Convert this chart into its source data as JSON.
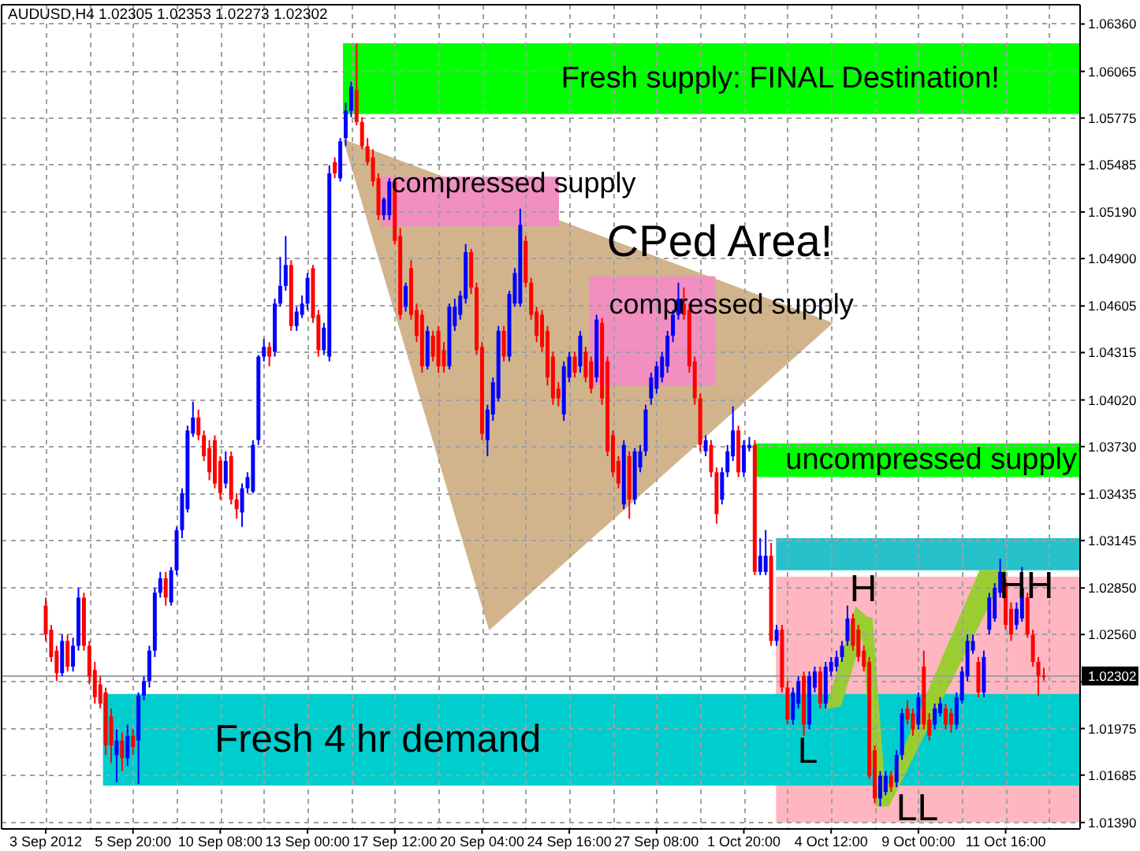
{
  "chart_data": {
    "type": "candlestick",
    "title": "AUDUSD,H4 1.02305 1.02353 1.02273 1.02302",
    "categories": [
      "3 Sep 2012",
      null,
      null,
      null,
      null,
      null,
      null,
      null,
      null,
      null,
      null,
      null,
      null,
      null,
      null,
      null,
      "5 Sep 20:00",
      null,
      null,
      null,
      null,
      null,
      null,
      null,
      null,
      null,
      null,
      null,
      null,
      null,
      null,
      null,
      "10 Sep 08:00",
      null,
      null,
      null,
      null,
      null,
      null,
      null,
      null,
      null,
      null,
      null,
      null,
      null,
      null,
      null,
      "13 Sep 00:00",
      null,
      null,
      null,
      null,
      null,
      null,
      null,
      null,
      null,
      null,
      null,
      null,
      null,
      null,
      null,
      "17 Sep 12:00",
      null,
      null,
      null,
      null,
      null,
      null,
      null,
      null,
      null,
      null,
      null,
      null,
      null,
      null,
      null,
      "20 Sep 04:00",
      null,
      null,
      null,
      null,
      null,
      null,
      null,
      null,
      null,
      null,
      null,
      null,
      null,
      null,
      null,
      "24 Sep 16:00",
      null,
      null,
      null,
      null,
      null,
      null,
      null,
      null,
      null,
      null,
      null,
      null,
      null,
      null,
      null,
      "27 Sep 08:00",
      null,
      null,
      null,
      null,
      null,
      null,
      null,
      null,
      null,
      null,
      null,
      null,
      null,
      null,
      null,
      "1 Oct 20:00",
      null,
      null,
      null,
      null,
      null,
      null,
      null,
      null,
      null,
      null,
      null,
      null,
      null,
      null,
      null,
      "4 Oct 12:00",
      null,
      null,
      null,
      null,
      null,
      null,
      null,
      null,
      null,
      null,
      null,
      null,
      null,
      null,
      null,
      "9 Oct 00:00",
      null,
      null,
      null,
      null,
      null,
      null,
      null,
      null,
      null,
      null,
      null,
      null,
      null,
      null,
      null,
      "11 Oct 16:00",
      null,
      null,
      null,
      null,
      null,
      null,
      null
    ],
    "ohlc": [
      [
        1.0274,
        1.0279,
        1.0252,
        1.0256
      ],
      [
        1.0259,
        1.0262,
        1.0239,
        1.0242
      ],
      [
        1.0246,
        1.0249,
        1.0227,
        1.0232
      ],
      [
        1.0232,
        1.0256,
        1.023,
        1.0252
      ],
      [
        1.0252,
        1.0256,
        1.0233,
        1.0236
      ],
      [
        1.0236,
        1.0254,
        1.0233,
        1.0249
      ],
      [
        1.0249,
        1.0285,
        1.0246,
        1.0279
      ],
      [
        1.0279,
        1.0282,
        1.0246,
        1.0249
      ],
      [
        1.0249,
        1.0252,
        1.0225,
        1.023
      ],
      [
        1.0234,
        1.0239,
        1.0213,
        1.0217
      ],
      [
        1.0225,
        1.023,
        1.021,
        1.0213
      ],
      [
        1.022,
        1.0223,
        1.0181,
        1.0187
      ],
      [
        1.0205,
        1.021,
        1.0176,
        1.0187
      ],
      [
        1.0181,
        1.0197,
        1.0164,
        1.019
      ],
      [
        1.019,
        1.0195,
        1.0171,
        1.0179
      ],
      [
        1.0179,
        1.02,
        1.0174,
        1.0193
      ],
      [
        1.0193,
        1.0197,
        1.0181,
        1.0186
      ],
      [
        1.019,
        1.022,
        1.0163,
        1.0218
      ],
      [
        1.0218,
        1.023,
        1.0215,
        1.0227
      ],
      [
        1.0227,
        1.0249,
        1.0223,
        1.0246
      ],
      [
        1.0246,
        1.0285,
        1.0242,
        1.0282
      ],
      [
        1.0282,
        1.0295,
        1.0279,
        1.0291
      ],
      [
        1.0291,
        1.0295,
        1.0274,
        1.0279
      ],
      [
        1.0276,
        1.0298,
        1.0274,
        1.0296
      ],
      [
        1.0296,
        1.0323,
        1.0293,
        1.0321
      ],
      [
        1.0321,
        1.0347,
        1.0316,
        1.0344
      ],
      [
        1.0334,
        1.0386,
        1.0332,
        1.0383
      ],
      [
        1.0381,
        1.0401,
        1.0379,
        1.0391
      ],
      [
        1.0391,
        1.0396,
        1.0377,
        1.038
      ],
      [
        1.038,
        1.0383,
        1.0364,
        1.0367
      ],
      [
        1.0372,
        1.0377,
        1.0352,
        1.0357
      ],
      [
        1.0377,
        1.038,
        1.0347,
        1.035
      ],
      [
        1.0364,
        1.0367,
        1.034,
        1.0344
      ],
      [
        1.035,
        1.037,
        1.0347,
        1.0364
      ],
      [
        1.0367,
        1.037,
        1.0337,
        1.034
      ],
      [
        1.034,
        1.0344,
        1.0328,
        1.0334
      ],
      [
        1.0332,
        1.035,
        1.0323,
        1.0347
      ],
      [
        1.0347,
        1.0357,
        1.0344,
        1.0354
      ],
      [
        1.0345,
        1.0377,
        1.0344,
        1.0374
      ],
      [
        1.0377,
        1.043,
        1.0374,
        1.0429
      ],
      [
        1.0429,
        1.044,
        1.0426,
        1.0435
      ],
      [
        1.0435,
        1.0438,
        1.0423,
        1.0429
      ],
      [
        1.0432,
        1.0465,
        1.0429,
        1.0462
      ],
      [
        1.0462,
        1.0491,
        1.046,
        1.0473
      ],
      [
        1.0473,
        1.0504,
        1.047,
        1.0486
      ],
      [
        1.0486,
        1.0489,
        1.0445,
        1.0448
      ],
      [
        1.0448,
        1.046,
        1.0445,
        1.0457
      ],
      [
        1.0455,
        1.0467,
        1.0453,
        1.0462
      ],
      [
        1.0462,
        1.0481,
        1.0458,
        1.0478
      ],
      [
        1.0484,
        1.0486,
        1.045,
        1.0453
      ],
      [
        1.0455,
        1.0458,
        1.0429,
        1.0433
      ],
      [
        1.0433,
        1.045,
        1.043,
        1.0447
      ],
      [
        1.0429,
        1.0548,
        1.0426,
        1.0543
      ],
      [
        1.055,
        1.0553,
        1.054,
        1.0543
      ],
      [
        1.054,
        1.0565,
        1.0538,
        1.0563
      ],
      [
        1.0565,
        1.0587,
        1.056,
        1.0582
      ],
      [
        1.0582,
        1.06,
        1.0578,
        1.0597
      ],
      [
        1.0595,
        1.0624,
        1.0573,
        1.0575
      ],
      [
        1.0575,
        1.0578,
        1.0558,
        1.056
      ],
      [
        1.056,
        1.0565,
        1.0548,
        1.055
      ],
      [
        1.0553,
        1.0558,
        1.0535,
        1.0538
      ],
      [
        1.054,
        1.0543,
        1.0514,
        1.0517
      ],
      [
        1.0517,
        1.0528,
        1.0514,
        1.0527
      ],
      [
        1.0517,
        1.054,
        1.0514,
        1.0538
      ],
      [
        1.0538,
        1.054,
        1.0499,
        1.0501
      ],
      [
        1.0504,
        1.0509,
        1.0452,
        1.0455
      ],
      [
        1.046,
        1.0475,
        1.0457,
        1.0473
      ],
      [
        1.0484,
        1.0489,
        1.0452,
        1.0455
      ],
      [
        1.0458,
        1.0462,
        1.0438,
        1.0442
      ],
      [
        1.0455,
        1.0458,
        1.0419,
        1.0423
      ],
      [
        1.0423,
        1.0448,
        1.0421,
        1.0445
      ],
      [
        1.0442,
        1.0445,
        1.0426,
        1.0429
      ],
      [
        1.0445,
        1.0448,
        1.0419,
        1.0423
      ],
      [
        1.0433,
        1.0438,
        1.0419,
        1.0423
      ],
      [
        1.0423,
        1.0462,
        1.0421,
        1.046
      ],
      [
        1.0448,
        1.0465,
        1.0445,
        1.046
      ],
      [
        1.0455,
        1.047,
        1.0452,
        1.0467
      ],
      [
        1.0465,
        1.0499,
        1.0462,
        1.0494
      ],
      [
        1.0494,
        1.0496,
        1.0468,
        1.0472
      ],
      [
        1.0472,
        1.0475,
        1.043,
        1.0433
      ],
      [
        1.0435,
        1.0438,
        1.0377,
        1.0381
      ],
      [
        1.0377,
        1.0399,
        1.0367,
        1.0396
      ],
      [
        1.0393,
        1.0416,
        1.0389,
        1.0413
      ],
      [
        1.0403,
        1.0448,
        1.0401,
        1.0445
      ],
      [
        1.0445,
        1.0448,
        1.0426,
        1.0429
      ],
      [
        1.0429,
        1.047,
        1.0426,
        1.0468
      ],
      [
        1.0462,
        1.0484,
        1.046,
        1.0481
      ],
      [
        1.0462,
        1.0521,
        1.046,
        1.0511
      ],
      [
        1.0501,
        1.0504,
        1.0472,
        1.0475
      ],
      [
        1.0475,
        1.0478,
        1.0452,
        1.0455
      ],
      [
        1.0457,
        1.046,
        1.0438,
        1.0442
      ],
      [
        1.0455,
        1.0458,
        1.0432,
        1.0435
      ],
      [
        1.0445,
        1.0448,
        1.0411,
        1.0416
      ],
      [
        1.0429,
        1.0432,
        1.0399,
        1.0403
      ],
      [
        1.0409,
        1.0413,
        1.0398,
        1.0403
      ],
      [
        1.0393,
        1.0426,
        1.0389,
        1.0423
      ],
      [
        1.0416,
        1.0432,
        1.0413,
        1.0429
      ],
      [
        1.0429,
        1.0432,
        1.0416,
        1.0419
      ],
      [
        1.0423,
        1.0445,
        1.0419,
        1.0442
      ],
      [
        1.0432,
        1.0435,
        1.0413,
        1.0416
      ],
      [
        1.0426,
        1.0429,
        1.0406,
        1.0409
      ],
      [
        1.0416,
        1.0455,
        1.0413,
        1.0452
      ],
      [
        1.045,
        1.0453,
        1.0399,
        1.0403
      ],
      [
        1.0426,
        1.0429,
        1.0367,
        1.037
      ],
      [
        1.038,
        1.0383,
        1.0354,
        1.0357
      ],
      [
        1.0364,
        1.0367,
        1.0347,
        1.035
      ],
      [
        1.0337,
        1.0377,
        1.0334,
        1.0374
      ],
      [
        1.0367,
        1.037,
        1.0328,
        1.034
      ],
      [
        1.034,
        1.0372,
        1.0337,
        1.037
      ],
      [
        1.036,
        1.0374,
        1.0357,
        1.037
      ],
      [
        1.037,
        1.0399,
        1.0367,
        1.0396
      ],
      [
        1.0403,
        1.0419,
        1.0399,
        1.0416
      ],
      [
        1.0409,
        1.0426,
        1.0406,
        1.0423
      ],
      [
        1.0416,
        1.0432,
        1.0413,
        1.0429
      ],
      [
        1.0423,
        1.0445,
        1.0419,
        1.0442
      ],
      [
        1.0442,
        1.0458,
        1.0438,
        1.0455
      ],
      [
        1.0455,
        1.0475,
        1.0452,
        1.0465
      ],
      [
        1.0462,
        1.0472,
        1.0452,
        1.0455
      ],
      [
        1.0458,
        1.0462,
        1.0419,
        1.0423
      ],
      [
        1.0426,
        1.0429,
        1.0399,
        1.0403
      ],
      [
        1.0403,
        1.0406,
        1.037,
        1.0374
      ],
      [
        1.037,
        1.038,
        1.0367,
        1.0377
      ],
      [
        1.0374,
        1.0377,
        1.0354,
        1.0357
      ],
      [
        1.0357,
        1.036,
        1.0325,
        1.0331
      ],
      [
        1.034,
        1.036,
        1.0337,
        1.0357
      ],
      [
        1.0357,
        1.0374,
        1.0354,
        1.037
      ],
      [
        1.0367,
        1.0398,
        1.0364,
        1.0383
      ],
      [
        1.0383,
        1.0386,
        1.0354,
        1.0357
      ],
      [
        1.0357,
        1.0377,
        1.0354,
        1.0374
      ],
      [
        1.0372,
        1.0379,
        1.037,
        1.0374
      ],
      [
        1.0374,
        1.0377,
        1.0293,
        1.0295
      ],
      [
        1.0295,
        1.0316,
        1.0293,
        1.0305
      ],
      [
        1.0295,
        1.0321,
        1.0293,
        1.0305
      ],
      [
        1.0305,
        1.0313,
        1.0249,
        1.0252
      ],
      [
        1.0252,
        1.0262,
        1.0249,
        1.0259
      ],
      [
        1.0259,
        1.0262,
        1.022,
        1.0223
      ],
      [
        1.0223,
        1.0227,
        1.02,
        1.0203
      ],
      [
        1.0203,
        1.0223,
        1.02,
        1.022
      ],
      [
        1.0213,
        1.023,
        1.021,
        1.0227
      ],
      [
        1.023,
        1.0233,
        1.0193,
        1.02
      ],
      [
        1.02,
        1.0233,
        1.0197,
        1.023
      ],
      [
        1.0223,
        1.0236,
        1.022,
        1.0233
      ],
      [
        1.0233,
        1.0236,
        1.021,
        1.0213
      ],
      [
        1.0213,
        1.0239,
        1.021,
        1.0236
      ],
      [
        1.0233,
        1.0242,
        1.023,
        1.0239
      ],
      [
        1.0236,
        1.0246,
        1.0233,
        1.0242
      ],
      [
        1.0242,
        1.0252,
        1.0239,
        1.0249
      ],
      [
        1.0252,
        1.0274,
        1.0249,
        1.0266
      ],
      [
        1.0266,
        1.0269,
        1.0246,
        1.0249
      ],
      [
        1.0259,
        1.0262,
        1.0239,
        1.0242
      ],
      [
        1.0246,
        1.0249,
        1.0233,
        1.0236
      ],
      [
        1.0239,
        1.0242,
        1.0166,
        1.0168
      ],
      [
        1.0184,
        1.0187,
        1.0151,
        1.0154
      ],
      [
        1.0154,
        1.0171,
        1.0149,
        1.0168
      ],
      [
        1.0158,
        1.0171,
        1.0156,
        1.0168
      ],
      [
        1.0168,
        1.0171,
        1.0158,
        1.0161
      ],
      [
        1.0164,
        1.0184,
        1.0161,
        1.0181
      ],
      [
        1.0181,
        1.021,
        1.0178,
        1.0207
      ],
      [
        1.021,
        1.0215,
        1.02,
        1.0203
      ],
      [
        1.0207,
        1.021,
        1.0193,
        1.0197
      ],
      [
        1.02,
        1.022,
        1.0197,
        1.0217
      ],
      [
        1.0236,
        1.0246,
        1.0197,
        1.02
      ],
      [
        1.0203,
        1.0207,
        1.019,
        1.0193
      ],
      [
        1.02,
        1.0213,
        1.0197,
        1.021
      ],
      [
        1.0207,
        1.0217,
        1.0205,
        1.0213
      ],
      [
        1.021,
        1.0213,
        1.0197,
        1.02
      ],
      [
        1.0207,
        1.021,
        1.0195,
        1.02
      ],
      [
        1.02,
        1.022,
        1.0197,
        1.0217
      ],
      [
        1.0215,
        1.0236,
        1.0213,
        1.0233
      ],
      [
        1.023,
        1.0256,
        1.0227,
        1.0252
      ],
      [
        1.0246,
        1.0256,
        1.0244,
        1.0252
      ],
      [
        1.0239,
        1.0242,
        1.0217,
        1.022
      ],
      [
        1.022,
        1.0246,
        1.0217,
        1.0242
      ],
      [
        1.0259,
        1.0282,
        1.0256,
        1.0279
      ],
      [
        1.0266,
        1.0288,
        1.0264,
        1.0285
      ],
      [
        1.0282,
        1.0303,
        1.0279,
        1.0295
      ],
      [
        1.0288,
        1.0291,
        1.0259,
        1.0262
      ],
      [
        1.0272,
        1.0276,
        1.0252,
        1.0256
      ],
      [
        1.0262,
        1.0276,
        1.0259,
        1.0272
      ],
      [
        1.0266,
        1.0298,
        1.0264,
        1.0285
      ],
      [
        1.0279,
        1.0282,
        1.0254,
        1.0256
      ],
      [
        1.0256,
        1.0259,
        1.0236,
        1.0239
      ],
      [
        1.0239,
        1.0242,
        1.0218,
        1.023
      ],
      [
        1.02305,
        1.02353,
        1.02273,
        1.02302
      ]
    ],
    "colors": [
      "#ff0000",
      "#ff0000",
      "#ff0000",
      "#0000ff",
      "#ff0000",
      "#0000ff",
      "#0000ff",
      "#ff0000",
      "#ff0000",
      "#ff0000",
      "#ff0000",
      "#ff0000",
      "#ff0000",
      "#0000ff",
      "#ff0000",
      "#0000ff",
      "#ff0000",
      "#0000ff",
      "#0000ff",
      "#0000ff",
      "#0000ff",
      "#0000ff",
      "#ff0000",
      "#0000ff",
      "#0000ff",
      "#0000ff",
      "#0000ff",
      "#0000ff",
      "#ff0000",
      "#ff0000",
      "#ff0000",
      "#ff0000",
      "#ff0000",
      "#0000ff",
      "#ff0000",
      "#ff0000",
      "#0000ff",
      "#0000ff",
      "#0000ff",
      "#0000ff",
      "#0000ff",
      "#ff0000",
      "#0000ff",
      "#0000ff",
      "#0000ff",
      "#ff0000",
      "#0000ff",
      "#0000ff",
      "#0000ff",
      "#ff0000",
      "#ff0000",
      "#0000ff",
      "#0000ff",
      "#ff0000",
      "#0000ff",
      "#0000ff",
      "#0000ff",
      "#ff0000",
      "#ff0000",
      "#ff0000",
      "#ff0000",
      "#ff0000",
      "#0000ff",
      "#0000ff",
      "#ff0000",
      "#ff0000",
      "#0000ff",
      "#ff0000",
      "#ff0000",
      "#ff0000",
      "#0000ff",
      "#ff0000",
      "#ff0000",
      "#ff0000",
      "#0000ff",
      "#0000ff",
      "#0000ff",
      "#0000ff",
      "#ff0000",
      "#ff0000",
      "#ff0000",
      "#0000ff",
      "#0000ff",
      "#0000ff",
      "#ff0000",
      "#0000ff",
      "#0000ff",
      "#0000ff",
      "#ff0000",
      "#ff0000",
      "#ff0000",
      "#ff0000",
      "#ff0000",
      "#ff0000",
      "#ff0000",
      "#0000ff",
      "#0000ff",
      "#ff0000",
      "#0000ff",
      "#ff0000",
      "#ff0000",
      "#0000ff",
      "#ff0000",
      "#ff0000",
      "#ff0000",
      "#ff0000",
      "#0000ff",
      "#ff0000",
      "#0000ff",
      "#0000ff",
      "#0000ff",
      "#0000ff",
      "#0000ff",
      "#0000ff",
      "#0000ff",
      "#0000ff",
      "#0000ff",
      "#ff0000",
      "#ff0000",
      "#ff0000",
      "#ff0000",
      "#0000ff",
      "#ff0000",
      "#ff0000",
      "#0000ff",
      "#0000ff",
      "#0000ff",
      "#ff0000",
      "#0000ff",
      "#0000ff",
      "#ff0000",
      "#0000ff",
      "#0000ff",
      "#ff0000",
      "#0000ff",
      "#ff0000",
      "#ff0000",
      "#0000ff",
      "#0000ff",
      "#ff0000",
      "#0000ff",
      "#0000ff",
      "#ff0000",
      "#0000ff",
      "#0000ff",
      "#0000ff",
      "#0000ff",
      "#0000ff",
      "#ff0000",
      "#ff0000",
      "#ff0000",
      "#ff0000",
      "#ff0000",
      "#0000ff",
      "#0000ff",
      "#ff0000",
      "#0000ff",
      "#0000ff",
      "#ff0000",
      "#ff0000",
      "#0000ff",
      "#ff0000",
      "#ff0000",
      "#0000ff",
      "#0000ff",
      "#ff0000",
      "#ff0000",
      "#0000ff",
      "#0000ff",
      "#0000ff",
      "#0000ff",
      "#ff0000",
      "#0000ff",
      "#0000ff",
      "#0000ff",
      "#0000ff",
      "#ff0000",
      "#ff0000",
      "#0000ff",
      "#0000ff",
      "#ff0000",
      "#ff0000",
      "#ff0000",
      "#ff0000"
    ],
    "ylim": [
      1.0135,
      1.0648
    ],
    "yticks": [
      {
        "value": 1.0636,
        "label": "1.06360"
      },
      1.06065,
      1.05775,
      1.05485,
      {
        "value": 1.0519,
        "label": "1.05190"
      },
      {
        "value": 1.049,
        "label": "1.04900"
      },
      1.04605,
      1.04315,
      {
        "value": 1.0402,
        "label": "1.04020"
      },
      {
        "value": 1.0373,
        "label": "1.03730"
      },
      1.03435,
      1.03145,
      {
        "value": 1.0285,
        "label": "1.02850"
      },
      {
        "value": 1.0256,
        "label": "1.02560"
      },
      {
        "value": 1.02265,
        "label": null
      },
      1.01975,
      1.01685,
      {
        "value": 1.0139,
        "label": "1.01390"
      }
    ],
    "grid": true,
    "bands": [
      {
        "axis": "y",
        "from": 1.0139,
        "to": 1.0292,
        "color": "#ffb6c1"
      },
      {
        "axis": "y",
        "from": 1.0296,
        "to": 1.0316,
        "color": "#26c1cb"
      },
      {
        "axis": "y",
        "from": 1.0162,
        "to": 1.0219,
        "color": "#00cdcd",
        "label": "Fresh 4 hr demand"
      },
      {
        "axis": "y",
        "from": 1.0354,
        "to": 1.0375,
        "color": "#00ff00",
        "label": "uncompressed supply"
      },
      {
        "axis": "y",
        "from": 1.051,
        "to": 1.0541,
        "color": "#f08fc0",
        "label": "compressed supply"
      },
      {
        "axis": "y",
        "from": 1.0411,
        "to": 1.0479,
        "color": "#f08fc0",
        "label": "compressed supply"
      },
      {
        "axis": "y",
        "from": 1.058,
        "to": 1.0624,
        "color": "#00ff00",
        "label": "Fresh supply: FINAL Destination!"
      }
    ],
    "ref_lines": [
      {
        "axis": "y",
        "value": 1.02302,
        "label": "1.02302",
        "color": "#a0a0a0"
      }
    ],
    "annotations": [
      "CPed Area!",
      "H",
      "L",
      "LL",
      "HH"
    ]
  }
}
